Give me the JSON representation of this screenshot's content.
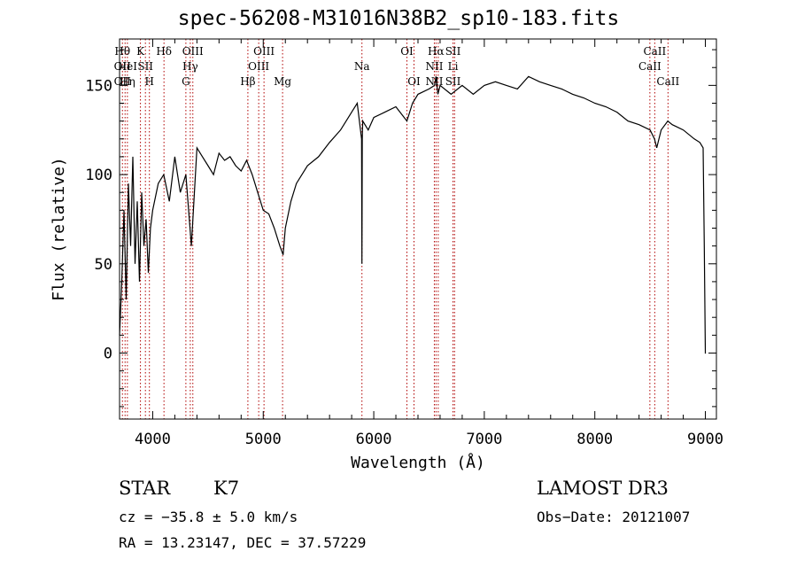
{
  "chart_data": {
    "type": "line",
    "title": "spec-56208-M31016N38B2_sp10-183.fits",
    "xlabel": "Wavelength (Å)",
    "ylabel": "Flux (relative)",
    "xlim": [
      3700,
      9100
    ],
    "ylim": [
      -37,
      176
    ],
    "x_ticks": [
      4000,
      5000,
      6000,
      7000,
      8000,
      9000
    ],
    "y_ticks": [
      0,
      50,
      100,
      150
    ],
    "x_tick_labels": [
      "4000",
      "5000",
      "6000",
      "7000",
      "8000",
      "9000"
    ],
    "y_tick_labels": [
      "0",
      "50",
      "100",
      "150"
    ],
    "series": [
      {
        "name": "spectrum",
        "color": "#000000",
        "x": [
          3700,
          3720,
          3740,
          3760,
          3780,
          3800,
          3820,
          3840,
          3860,
          3880,
          3900,
          3920,
          3940,
          3960,
          3980,
          4000,
          4050,
          4100,
          4150,
          4200,
          4250,
          4300,
          4350,
          4400,
          4450,
          4500,
          4550,
          4600,
          4650,
          4700,
          4750,
          4800,
          4850,
          4900,
          4950,
          5000,
          5050,
          5100,
          5150,
          5180,
          5200,
          5250,
          5300,
          5400,
          5500,
          5600,
          5700,
          5750,
          5800,
          5850,
          5890,
          5893,
          5896,
          5900,
          5950,
          6000,
          6100,
          6200,
          6300,
          6350,
          6400,
          6500,
          6550,
          6563,
          6580,
          6600,
          6700,
          6800,
          6900,
          7000,
          7100,
          7200,
          7300,
          7400,
          7500,
          7600,
          7700,
          7800,
          7900,
          8000,
          8100,
          8200,
          8300,
          8400,
          8500,
          8540,
          8560,
          8600,
          8660,
          8700,
          8800,
          8900,
          8950,
          8980,
          8990,
          9000,
          9005
        ],
        "y": [
          10,
          40,
          80,
          30,
          95,
          60,
          110,
          50,
          85,
          40,
          90,
          60,
          75,
          45,
          70,
          80,
          95,
          100,
          85,
          110,
          90,
          100,
          60,
          115,
          110,
          105,
          100,
          112,
          108,
          110,
          105,
          102,
          108,
          100,
          90,
          80,
          78,
          70,
          60,
          55,
          70,
          85,
          95,
          105,
          110,
          118,
          125,
          130,
          135,
          140,
          120,
          50,
          120,
          130,
          125,
          132,
          135,
          138,
          130,
          140,
          145,
          148,
          150,
          155,
          145,
          150,
          145,
          150,
          145,
          150,
          152,
          150,
          148,
          155,
          152,
          150,
          148,
          145,
          143,
          140,
          138,
          135,
          130,
          128,
          125,
          120,
          115,
          125,
          130,
          128,
          125,
          120,
          118,
          115,
          60,
          0,
          0
        ]
      }
    ],
    "line_ids": [
      {
        "wl": 3726,
        "rows": [
          {
            "r": 0,
            "t": "Hθ"
          },
          {
            "r": 1,
            "t": "OII"
          },
          {
            "r": 2,
            "t": "OII"
          }
        ]
      },
      {
        "wl": 3750,
        "rows": []
      },
      {
        "wl": 3771,
        "rows": [
          {
            "r": 1,
            "t": "HeI"
          },
          {
            "r": 2,
            "t": "Hη"
          }
        ]
      },
      {
        "wl": 3889,
        "rows": [
          {
            "r": 0,
            "t": "K"
          }
        ]
      },
      {
        "wl": 3934,
        "rows": [
          {
            "r": 1,
            "t": "SII"
          }
        ]
      },
      {
        "wl": 3970,
        "rows": [
          {
            "r": 2,
            "t": "H"
          }
        ]
      },
      {
        "wl": 4102,
        "rows": [
          {
            "r": 0,
            "t": "Hδ"
          }
        ]
      },
      {
        "wl": 4300,
        "rows": [
          {
            "r": 2,
            "t": "G"
          }
        ]
      },
      {
        "wl": 4340,
        "rows": [
          {
            "r": 1,
            "t": "Hγ"
          }
        ]
      },
      {
        "wl": 4363,
        "rows": [
          {
            "r": 0,
            "t": "OIII"
          }
        ]
      },
      {
        "wl": 4861,
        "rows": [
          {
            "r": 2,
            "t": "Hβ"
          }
        ]
      },
      {
        "wl": 4959,
        "rows": [
          {
            "r": 1,
            "t": "OIII"
          }
        ]
      },
      {
        "wl": 5007,
        "rows": [
          {
            "r": 0,
            "t": "OIII"
          }
        ]
      },
      {
        "wl": 5175,
        "rows": [
          {
            "r": 2,
            "t": "Mg"
          }
        ]
      },
      {
        "wl": 5893,
        "rows": [
          {
            "r": 1,
            "t": "Na"
          }
        ]
      },
      {
        "wl": 6300,
        "rows": [
          {
            "r": 0,
            "t": "OI"
          }
        ]
      },
      {
        "wl": 6364,
        "rows": [
          {
            "r": 2,
            "t": "OI"
          }
        ]
      },
      {
        "wl": 6548,
        "rows": [
          {
            "r": 1,
            "t": "NII"
          },
          {
            "r": 2,
            "t": "NII"
          }
        ]
      },
      {
        "wl": 6563,
        "rows": [
          {
            "r": 0,
            "t": "Hα"
          }
        ]
      },
      {
        "wl": 6583,
        "rows": []
      },
      {
        "wl": 6717,
        "rows": [
          {
            "r": 0,
            "t": "SII"
          },
          {
            "r": 1,
            "t": "Li"
          },
          {
            "r": 2,
            "t": "SII"
          }
        ]
      },
      {
        "wl": 6731,
        "rows": []
      },
      {
        "wl": 8498,
        "rows": [
          {
            "r": 1,
            "t": "CaII"
          }
        ]
      },
      {
        "wl": 8542,
        "rows": [
          {
            "r": 0,
            "t": "CaII"
          }
        ]
      },
      {
        "wl": 8662,
        "rows": [
          {
            "r": 2,
            "t": "CaII"
          }
        ]
      }
    ]
  },
  "info": {
    "class": "STAR",
    "subclass": "K7",
    "survey": "LAMOST DR3",
    "cz": "cz = −35.8 ± 5.0 km/s",
    "obs_date": "Obs−Date: 20121007",
    "radec": "RA =  13.23147, DEC =  37.57229"
  },
  "colors": {
    "line": "#000000",
    "id_line": "#b00000",
    "bg": "#ffffff"
  }
}
